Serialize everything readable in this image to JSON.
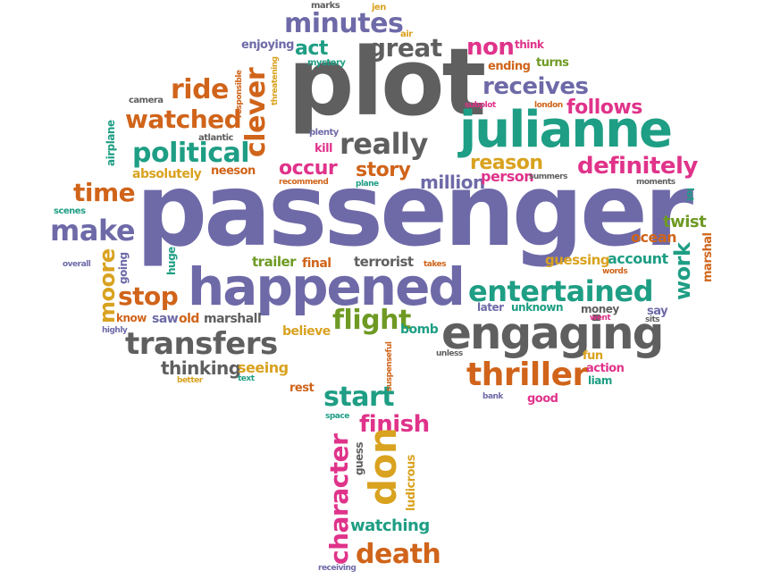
{
  "words": {
    "passenger": "passenger",
    "plot": "plot",
    "julianne": "julianne",
    "happened": "happened",
    "engaging": "engaging",
    "thriller": "thriller",
    "transfers": "transfers",
    "entertained": "entertained",
    "definitely": "definitely",
    "political": "political",
    "watched": "watched",
    "ride": "ride",
    "clever": "clever",
    "really": "really",
    "minutes": "minutes",
    "great": "great",
    "act": "act",
    "non": "non",
    "receives": "receives",
    "follows": "follows",
    "reason": "reason",
    "occur": "occur",
    "story": "story",
    "million": "million",
    "person": "person",
    "time": "time",
    "make": "make",
    "stop": "stop",
    "moore": "moore",
    "flight": "flight",
    "start": "start",
    "finish": "finish",
    "don": "don",
    "character": "character",
    "death": "death",
    "watching": "watching",
    "work": "work",
    "twist": "twist",
    "ocean": "ocean",
    "account": "account",
    "guessing": "guessing",
    "terrorist": "terrorist",
    "trailer": "trailer",
    "final": "final",
    "thinking": "thinking",
    "seeing": "seeing",
    "believe": "believe",
    "bomb": "bomb",
    "saw": "saw",
    "old": "old",
    "marshall": "marshall",
    "know": "know",
    "going": "going",
    "huge": "huge",
    "neeson": "neeson",
    "absolutely": "absolutely",
    "airplane": "airplane",
    "camera": "camera",
    "atlantic": "atlantic",
    "responsible": "responsible",
    "threatening": "threatening",
    "enjoying": "enjoying",
    "mystery": "mystery",
    "marks": "marks",
    "jen": "jen",
    "air": "air",
    "think": "think",
    "ending": "ending",
    "turns": "turns",
    "subplot": "subplot",
    "london": "london",
    "plenty": "plenty",
    "kill": "kill",
    "recommend": "recommend",
    "plane": "plane",
    "summers": "summers",
    "moments": "moments",
    "lot": "lot",
    "marshal": "marshal",
    "scenes": "scenes",
    "overall": "overall",
    "highly": "highly",
    "better": "better",
    "text": "text",
    "rest": "rest",
    "space": "space",
    "guess": "guess",
    "ludicrous": "ludicrous",
    "receiving": "receiving",
    "suspenseful": "suspenseful",
    "unless": "unless",
    "takes": "takes",
    "later": "later",
    "unknown": "unknown",
    "money": "money",
    "went": "went",
    "say": "say",
    "sits": "sits",
    "words": "words",
    "fun": "fun",
    "action": "action",
    "liam": "liam",
    "bank": "bank",
    "good": "good"
  }
}
